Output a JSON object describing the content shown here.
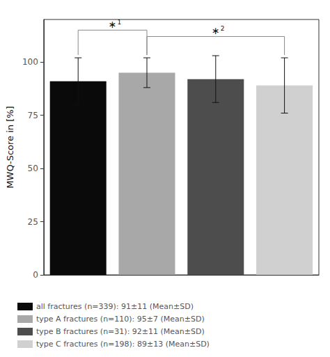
{
  "chart_data": {
    "type": "bar",
    "ylabel": "MWQ-Score in [%]",
    "categories": [
      "all fractures (n=339): 91±11 (Mean±SD)",
      "type A fractures (n=110): 95±7 (Mean±SD)",
      "type B fractures (n=31): 92±11 (Mean±SD)",
      "type C fractures (n=198): 89±13 (Mean±SD)"
    ],
    "values": [
      91,
      95,
      92,
      89
    ],
    "errors": [
      11,
      7,
      11,
      13
    ],
    "colors": [
      "#0a0a0a",
      "#a8a8a8",
      "#4d4d4d",
      "#d0d0d0"
    ],
    "ylim": [
      0,
      120
    ],
    "yticks": [
      0,
      25,
      50,
      75,
      100
    ],
    "grid": false,
    "legend": "bottom",
    "tick_labels": "y",
    "brackets": [
      {
        "from": 0,
        "to": 1,
        "y": 115,
        "text": "∗",
        "sup": "1",
        "color": "#888888"
      },
      {
        "from": 1,
        "to": 3,
        "y": 112,
        "text": "∗",
        "sup": "2",
        "color": "#888888"
      }
    ]
  }
}
